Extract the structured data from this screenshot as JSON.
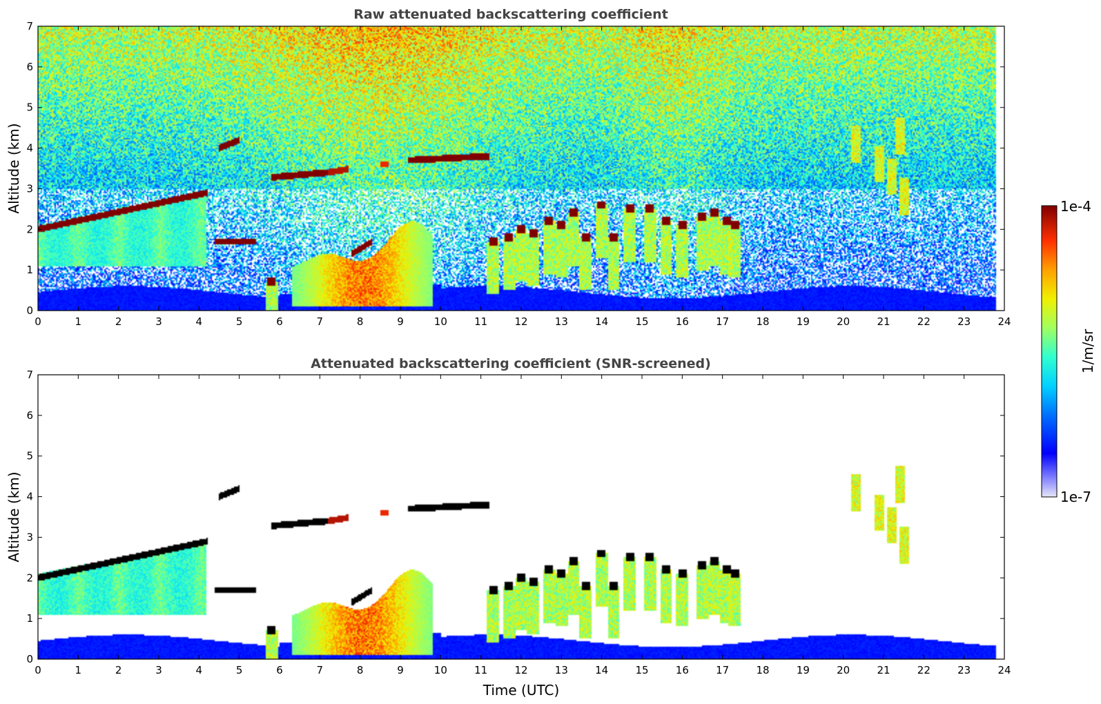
{
  "chart_data": [
    {
      "type": "heatmap",
      "title": "Raw attenuated backscattering coefficient",
      "xlabel": "",
      "ylabel": "Altitude (km)",
      "xlim": [
        0,
        24
      ],
      "ylim": [
        0,
        7
      ],
      "xticks": [
        "0",
        "1",
        "2",
        "3",
        "4",
        "5",
        "6",
        "7",
        "8",
        "9",
        "10",
        "11",
        "12",
        "13",
        "14",
        "15",
        "16",
        "17",
        "18",
        "19",
        "20",
        "21",
        "22",
        "23",
        "24"
      ],
      "yticks": [
        "0",
        "1",
        "2",
        "3",
        "4",
        "5",
        "6",
        "7"
      ],
      "data_end_time": 23.8,
      "features": [
        {
          "type": "layer",
          "t0": 0.0,
          "t1": 4.2,
          "h0": 2.0,
          "h1": 2.9,
          "level": 1.0
        },
        {
          "type": "layer",
          "t0": 4.5,
          "t1": 5.0,
          "h0": 4.0,
          "h1": 4.2,
          "level": 1.0
        },
        {
          "type": "layer",
          "t0": 5.8,
          "t1": 7.2,
          "h0": 3.28,
          "h1": 3.4,
          "level": 1.0
        },
        {
          "type": "layer",
          "t0": 7.2,
          "t1": 7.7,
          "h0": 3.4,
          "h1": 3.48,
          "level": 0.95
        },
        {
          "type": "layer",
          "t0": 8.5,
          "t1": 8.7,
          "h0": 3.6,
          "h1": 3.6,
          "level": 0.9
        },
        {
          "type": "layer",
          "t0": 9.2,
          "t1": 11.2,
          "h0": 3.7,
          "h1": 3.8,
          "level": 1.0
        },
        {
          "type": "layer",
          "t0": 4.4,
          "t1": 5.4,
          "h0": 1.7,
          "h1": 1.7,
          "level": 1.0
        },
        {
          "type": "layer",
          "t0": 7.8,
          "t1": 8.3,
          "h0": 1.4,
          "h1": 1.7,
          "level": 1.0
        }
      ]
    },
    {
      "type": "heatmap",
      "title": "Attenuated backscattering coefficient (SNR-screened)",
      "xlabel": "Time (UTC)",
      "ylabel": "Altitude (km)",
      "xlim": [
        0,
        24
      ],
      "ylim": [
        0,
        7
      ],
      "xticks": [
        "0",
        "1",
        "2",
        "3",
        "4",
        "5",
        "6",
        "7",
        "8",
        "9",
        "10",
        "11",
        "12",
        "13",
        "14",
        "15",
        "16",
        "17",
        "18",
        "19",
        "20",
        "21",
        "22",
        "23",
        "24"
      ],
      "yticks": [
        "0",
        "1",
        "2",
        "3",
        "4",
        "5",
        "6",
        "7"
      ],
      "data_end_time": 23.8,
      "masked_color": "#ffffff",
      "saturated_color": "#000000"
    }
  ],
  "colorbar": {
    "label": "1/m/sr",
    "min_label": "1e-7",
    "max_label": "1e-4",
    "scale": "log",
    "range": [
      1e-07,
      0.0001
    ]
  }
}
